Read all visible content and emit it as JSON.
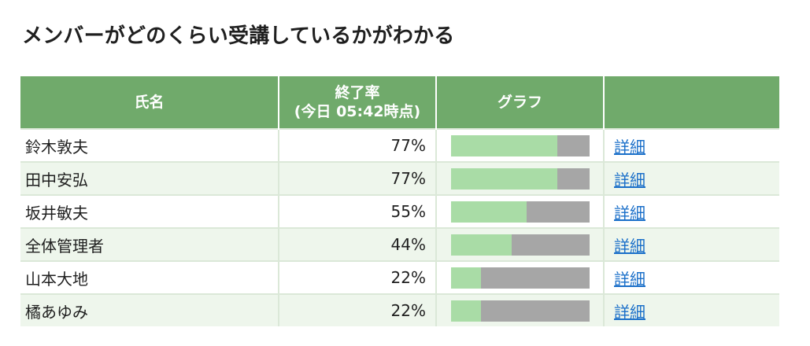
{
  "page": {
    "title": "メンバーがどのくらい受講しているかがわかる"
  },
  "table": {
    "headers": {
      "name": "氏名",
      "rate_line1": "終了率",
      "rate_line2": "(今日 05:42時点)",
      "graph": "グラフ",
      "detail": ""
    },
    "rows": [
      {
        "name": "鈴木敦夫",
        "rate": "77%",
        "progress": 77,
        "detail_label": "詳細"
      },
      {
        "name": "田中安弘",
        "rate": "77%",
        "progress": 77,
        "detail_label": "詳細"
      },
      {
        "name": "坂井敏夫",
        "rate": "55%",
        "progress": 55,
        "detail_label": "詳細"
      },
      {
        "name": "全体管理者",
        "rate": "44%",
        "progress": 44,
        "detail_label": "詳細"
      },
      {
        "name": "山本大地",
        "rate": "22%",
        "progress": 22,
        "detail_label": "詳細"
      },
      {
        "name": "橘あゆみ",
        "rate": "22%",
        "progress": 22,
        "detail_label": "詳細"
      }
    ]
  },
  "colors": {
    "header_bg": "#70aa6b",
    "bar_fill": "#a9dca6",
    "bar_track": "#a6a6a6",
    "link": "#1a6fc9",
    "alt_row": "#eef6ec"
  }
}
